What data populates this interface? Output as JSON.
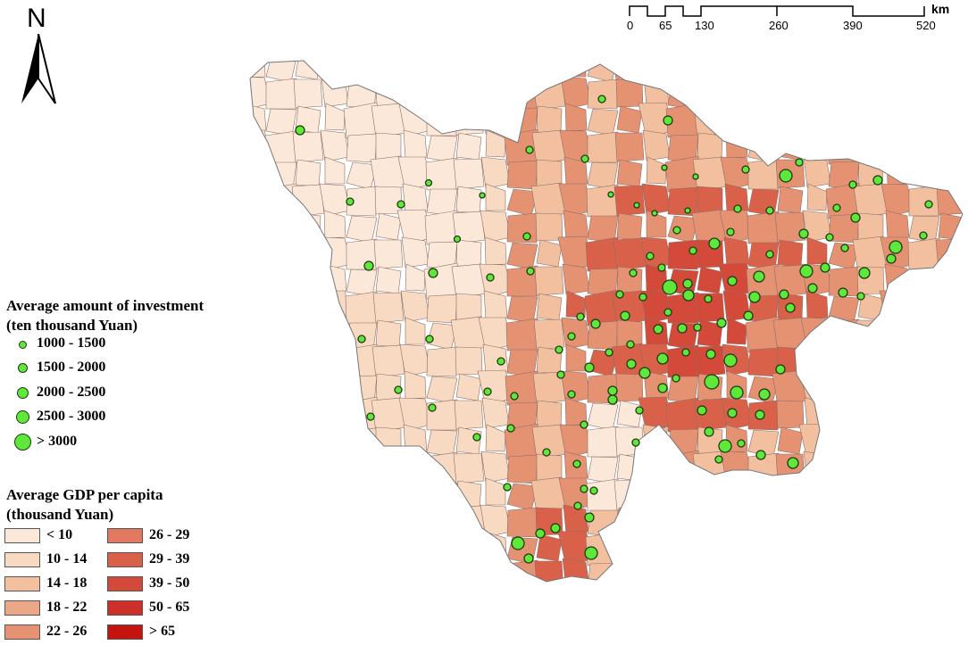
{
  "north_arrow": {
    "label": "N",
    "icon": "north-arrow-icon"
  },
  "scale_bar": {
    "ticks": [
      "0",
      "65",
      "130",
      "260",
      "390",
      "520"
    ],
    "unit": "km"
  },
  "investment_legend": {
    "title_line1": "Average amount of investment",
    "title_line2": "(ten thousand Yuan)",
    "classes": [
      {
        "label": "1000 - 1500"
      },
      {
        "label": "1500 - 2000"
      },
      {
        "label": "2000 - 2500"
      },
      {
        "label": "2500 - 3000"
      },
      {
        "label": "> 3000"
      }
    ],
    "symbol_color": "#5ee83a"
  },
  "gdp_legend": {
    "title_line1": "Average GDP per capita",
    "title_line2": "(thousand Yuan)",
    "classes": [
      {
        "label": "< 10",
        "color": "#fce8d8"
      },
      {
        "label": "10 - 14",
        "color": "#f8d9c2"
      },
      {
        "label": "14 - 18",
        "color": "#f2bf9f"
      },
      {
        "label": "18 - 22",
        "color": "#eba886"
      },
      {
        "label": "22 - 26",
        "color": "#e59273"
      },
      {
        "label": "26 - 29",
        "color": "#e0795f"
      },
      {
        "label": "29 - 39",
        "color": "#d9614a"
      },
      {
        "label": "39 - 50",
        "color": "#d44a3a"
      },
      {
        "label": "50 - 65",
        "color": "#cc3028"
      },
      {
        "label": "> 65",
        "color": "#c4140f"
      }
    ]
  }
}
